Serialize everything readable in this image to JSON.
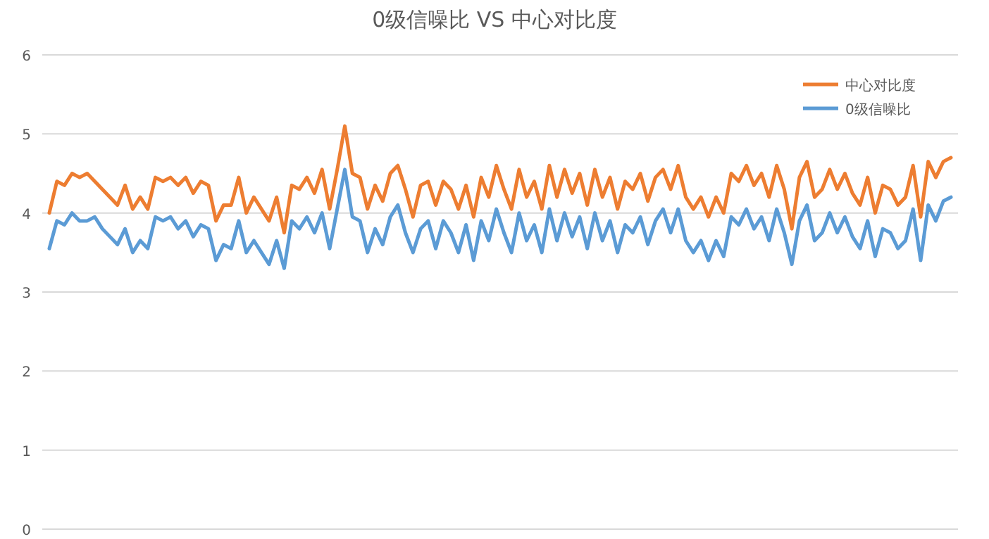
{
  "chart_data": {
    "type": "line",
    "title": "0级信噪比 VS 中心对比度",
    "categories": [
      null,
      null,
      null,
      null,
      null,
      null,
      null,
      null,
      null,
      null,
      null,
      null,
      null,
      null,
      null,
      null,
      null,
      null,
      null,
      null,
      null,
      null,
      null,
      null,
      null,
      null,
      null,
      null,
      null,
      null,
      null,
      null,
      null,
      null,
      null,
      null,
      null,
      null,
      null,
      null,
      null,
      null,
      null,
      null,
      null,
      null,
      null,
      null,
      null,
      null,
      null,
      null,
      null,
      null,
      null,
      null,
      null,
      null,
      null,
      null,
      null,
      null,
      null,
      null,
      null,
      null,
      null,
      null,
      null,
      null,
      null,
      null,
      null,
      null,
      null,
      null,
      null,
      null,
      null,
      null,
      null,
      null,
      null,
      null,
      null,
      null,
      null,
      null,
      null,
      null,
      null,
      null,
      null,
      null,
      null,
      null,
      null,
      null,
      null,
      null,
      null,
      null,
      null,
      null,
      null,
      null,
      null,
      null,
      null,
      null,
      null,
      null,
      null,
      null,
      null,
      null,
      null,
      null,
      null,
      null
    ],
    "series": [
      {
        "name": "中心对比度",
        "color": "#ed7d31",
        "values": [
          4.0,
          4.4,
          4.35,
          4.5,
          4.45,
          4.5,
          4.4,
          4.3,
          4.2,
          4.1,
          4.35,
          4.05,
          4.2,
          4.05,
          4.45,
          4.4,
          4.45,
          4.35,
          4.45,
          4.25,
          4.4,
          4.35,
          3.9,
          4.1,
          4.1,
          4.45,
          4.0,
          4.2,
          4.05,
          3.9,
          4.2,
          3.75,
          4.35,
          4.3,
          4.45,
          4.25,
          4.55,
          4.05,
          4.55,
          5.1,
          4.5,
          4.45,
          4.05,
          4.35,
          4.15,
          4.5,
          4.6,
          4.3,
          3.95,
          4.35,
          4.4,
          4.1,
          4.4,
          4.3,
          4.05,
          4.35,
          3.95,
          4.45,
          4.2,
          4.6,
          4.3,
          4.05,
          4.55,
          4.2,
          4.4,
          4.05,
          4.6,
          4.2,
          4.55,
          4.25,
          4.5,
          4.1,
          4.55,
          4.2,
          4.45,
          4.05,
          4.4,
          4.3,
          4.5,
          4.15,
          4.45,
          4.55,
          4.3,
          4.6,
          4.2,
          4.05,
          4.2,
          3.95,
          4.2,
          4.0,
          4.5,
          4.4,
          4.6,
          4.35,
          4.5,
          4.2,
          4.6,
          4.3,
          3.8,
          4.45,
          4.65,
          4.2,
          4.3,
          4.55,
          4.3,
          4.5,
          4.25,
          4.1,
          4.45,
          4.0,
          4.35,
          4.3,
          4.1,
          4.2,
          4.6,
          3.95,
          4.65,
          4.45,
          4.65,
          4.7
        ]
      },
      {
        "name": "0级信噪比",
        "color": "#5b9bd5",
        "values": [
          3.55,
          3.9,
          3.85,
          4.0,
          3.9,
          3.9,
          3.95,
          3.8,
          3.7,
          3.6,
          3.8,
          3.5,
          3.65,
          3.55,
          3.95,
          3.9,
          3.95,
          3.8,
          3.9,
          3.7,
          3.85,
          3.8,
          3.4,
          3.6,
          3.55,
          3.9,
          3.5,
          3.65,
          3.5,
          3.35,
          3.65,
          3.3,
          3.9,
          3.8,
          3.95,
          3.75,
          4.0,
          3.55,
          4.05,
          4.55,
          3.95,
          3.9,
          3.5,
          3.8,
          3.6,
          3.95,
          4.1,
          3.75,
          3.5,
          3.8,
          3.9,
          3.55,
          3.9,
          3.75,
          3.5,
          3.85,
          3.4,
          3.9,
          3.65,
          4.05,
          3.75,
          3.5,
          4.0,
          3.65,
          3.85,
          3.5,
          4.05,
          3.65,
          4.0,
          3.7,
          3.95,
          3.55,
          4.0,
          3.65,
          3.9,
          3.5,
          3.85,
          3.75,
          3.95,
          3.6,
          3.9,
          4.05,
          3.75,
          4.05,
          3.65,
          3.5,
          3.65,
          3.4,
          3.65,
          3.45,
          3.95,
          3.85,
          4.05,
          3.8,
          3.95,
          3.65,
          4.05,
          3.75,
          3.35,
          3.9,
          4.1,
          3.65,
          3.75,
          4.0,
          3.75,
          3.95,
          3.7,
          3.55,
          3.9,
          3.45,
          3.8,
          3.75,
          3.55,
          3.65,
          4.05,
          3.4,
          4.1,
          3.9,
          4.15,
          4.2
        ]
      }
    ],
    "ylim": [
      0,
      6
    ],
    "yticks": [
      0,
      1,
      2,
      3,
      4,
      5,
      6
    ],
    "grid": "y",
    "legend": "top right",
    "tick_labels": "y"
  }
}
